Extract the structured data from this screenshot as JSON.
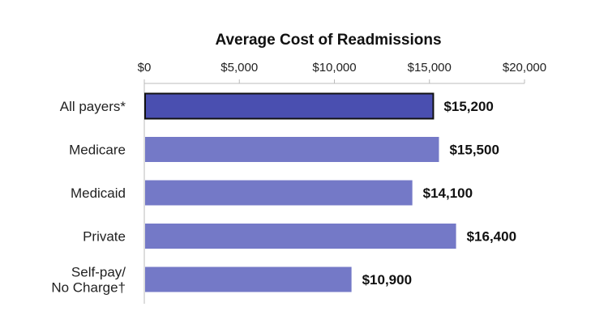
{
  "chart_data": {
    "type": "bar",
    "orientation": "horizontal",
    "title": "Average Cost of Readmissions",
    "xlabel": "",
    "ylabel": "",
    "xlim": [
      0,
      20000
    ],
    "x_ticks": [
      0,
      5000,
      10000,
      15000,
      20000
    ],
    "x_tick_labels": [
      "$0",
      "$5,000",
      "$10,000",
      "$15,000",
      "$20,000"
    ],
    "x_axis_position": "top",
    "grid": false,
    "categories": [
      "All payers*",
      "Medicare",
      "Medicaid",
      "Private",
      "Self-pay/\nNo Charge†"
    ],
    "values": [
      15200,
      15500,
      14100,
      16400,
      10900
    ],
    "data_labels": [
      "$15,200",
      "$15,500",
      "$14,100",
      "$16,400",
      "$10,900"
    ],
    "colors": {
      "highlight_bar": "#4a4fb0",
      "bar": "#7479c7",
      "highlight_outline": "#111111",
      "axis": "#bbbbbb"
    },
    "highlight_index": 0
  }
}
